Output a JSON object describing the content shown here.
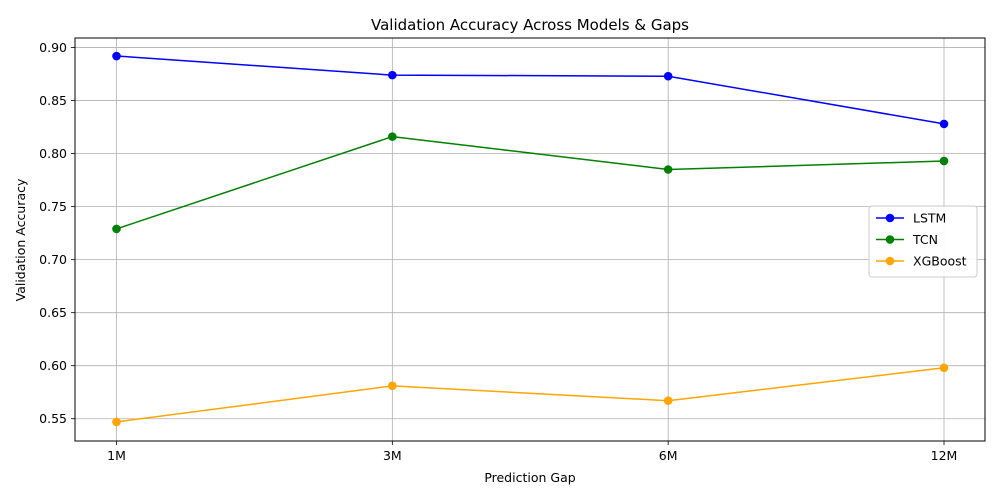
{
  "chart_data": {
    "type": "line",
    "title": "Validation Accuracy Across Models & Gaps",
    "xlabel": "Prediction Gap",
    "ylabel": "Validation Accuracy",
    "categories": [
      "1M",
      "3M",
      "6M",
      "12M"
    ],
    "ylim": [
      0.529,
      0.909
    ],
    "yticks": [
      0.55,
      0.6,
      0.65,
      0.7,
      0.75,
      0.8,
      0.85,
      0.9
    ],
    "ytick_labels": [
      "0.55",
      "0.60",
      "0.65",
      "0.70",
      "0.75",
      "0.80",
      "0.85",
      "0.90"
    ],
    "grid": true,
    "legend_position": "center-right",
    "series": [
      {
        "name": "LSTM",
        "color": "#0000ff",
        "values": [
          0.892,
          0.874,
          0.873,
          0.828
        ]
      },
      {
        "name": "TCN",
        "color": "#008000",
        "values": [
          0.729,
          0.816,
          0.785,
          0.793
        ]
      },
      {
        "name": "XGBoost",
        "color": "#ffa500",
        "values": [
          0.547,
          0.581,
          0.567,
          0.598
        ]
      }
    ]
  }
}
